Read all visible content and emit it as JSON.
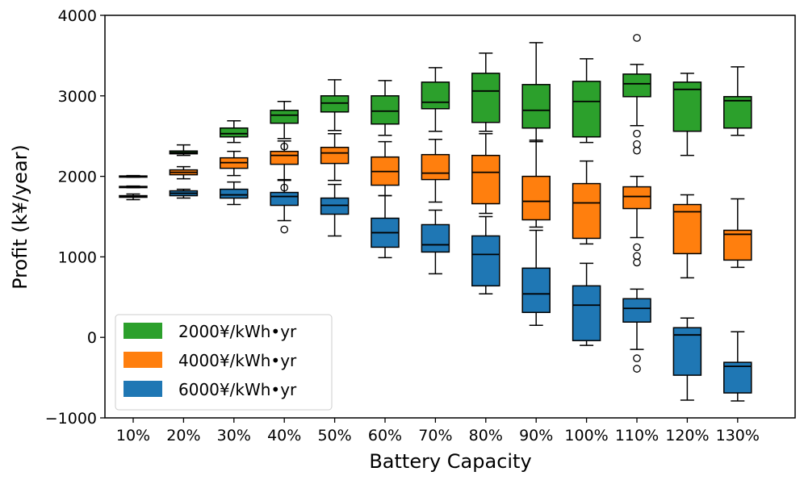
{
  "chart_data": {
    "type": "boxplot",
    "title": "",
    "xlabel": "Battery Capacity",
    "ylabel": "Profit (k¥/year)",
    "ylim": [
      -1000,
      4000
    ],
    "yticks": [
      -1000,
      0,
      1000,
      2000,
      3000,
      4000
    ],
    "ytick_labels": [
      "−1000",
      "0",
      "1000",
      "2000",
      "3000",
      "4000"
    ],
    "categories": [
      "10%",
      "20%",
      "30%",
      "40%",
      "50%",
      "60%",
      "70%",
      "80%",
      "90%",
      "100%",
      "110%",
      "120%",
      "130%"
    ],
    "legend_position": "lower-left",
    "grid": false,
    "series": [
      {
        "name": "2000¥/kWh•yr",
        "color": "#2ca02c",
        "boxes": [
          {
            "whislo": 1990,
            "q1": 1995,
            "med": 2000,
            "q3": 2005,
            "whishi": 2010,
            "fliers": []
          },
          {
            "whislo": 2260,
            "q1": 2280,
            "med": 2295,
            "q3": 2315,
            "whishi": 2390,
            "fliers": []
          },
          {
            "whislo": 2420,
            "q1": 2490,
            "med": 2530,
            "q3": 2600,
            "whishi": 2690,
            "fliers": []
          },
          {
            "whislo": 2470,
            "q1": 2660,
            "med": 2760,
            "q3": 2820,
            "whishi": 2930,
            "fliers": []
          },
          {
            "whislo": 2570,
            "q1": 2800,
            "med": 2910,
            "q3": 3000,
            "whishi": 3200,
            "fliers": []
          },
          {
            "whislo": 2510,
            "q1": 2650,
            "med": 2810,
            "q3": 3000,
            "whishi": 3190,
            "fliers": []
          },
          {
            "whislo": 2560,
            "q1": 2840,
            "med": 2920,
            "q3": 3170,
            "whishi": 3350,
            "fliers": []
          },
          {
            "whislo": 2560,
            "q1": 2670,
            "med": 3060,
            "q3": 3280,
            "whishi": 3530,
            "fliers": []
          },
          {
            "whislo": 2430,
            "q1": 2600,
            "med": 2820,
            "q3": 3140,
            "whishi": 3660,
            "fliers": []
          },
          {
            "whislo": 2420,
            "q1": 2490,
            "med": 2930,
            "q3": 3180,
            "whishi": 3460,
            "fliers": []
          },
          {
            "whislo": 2630,
            "q1": 2990,
            "med": 3150,
            "q3": 3270,
            "whishi": 3390,
            "fliers": [
              3720,
              2530,
              2400,
              2320
            ]
          },
          {
            "whislo": 2260,
            "q1": 2560,
            "med": 3080,
            "q3": 3170,
            "whishi": 3280,
            "fliers": []
          },
          {
            "whislo": 2510,
            "q1": 2600,
            "med": 2940,
            "q3": 2990,
            "whishi": 3360,
            "fliers": []
          }
        ]
      },
      {
        "name": "4000¥/kWh•yr",
        "color": "#ff7f0e",
        "boxes": [
          {
            "whislo": 1860,
            "q1": 1865,
            "med": 1870,
            "q3": 1875,
            "whishi": 1880,
            "fliers": []
          },
          {
            "whislo": 1970,
            "q1": 2020,
            "med": 2050,
            "q3": 2080,
            "whishi": 2120,
            "fliers": []
          },
          {
            "whislo": 2010,
            "q1": 2100,
            "med": 2170,
            "q3": 2230,
            "whishi": 2310,
            "fliers": []
          },
          {
            "whislo": 1960,
            "q1": 2150,
            "med": 2260,
            "q3": 2310,
            "whishi": 2440,
            "fliers": [
              2370,
              1860
            ]
          },
          {
            "whislo": 1950,
            "q1": 2160,
            "med": 2290,
            "q3": 2360,
            "whishi": 2530,
            "fliers": []
          },
          {
            "whislo": 1760,
            "q1": 1890,
            "med": 2060,
            "q3": 2240,
            "whishi": 2430,
            "fliers": []
          },
          {
            "whislo": 1680,
            "q1": 1960,
            "med": 2040,
            "q3": 2270,
            "whishi": 2460,
            "fliers": []
          },
          {
            "whislo": 1540,
            "q1": 1660,
            "med": 2050,
            "q3": 2260,
            "whishi": 2530,
            "fliers": []
          },
          {
            "whislo": 1370,
            "q1": 1460,
            "med": 1690,
            "q3": 2000,
            "whishi": 2450,
            "fliers": []
          },
          {
            "whislo": 1160,
            "q1": 1230,
            "med": 1670,
            "q3": 1910,
            "whishi": 2190,
            "fliers": []
          },
          {
            "whislo": 1240,
            "q1": 1600,
            "med": 1750,
            "q3": 1870,
            "whishi": 2000,
            "fliers": [
              1120,
              1010,
              930
            ]
          },
          {
            "whislo": 740,
            "q1": 1040,
            "med": 1560,
            "q3": 1650,
            "whishi": 1770,
            "fliers": []
          },
          {
            "whislo": 870,
            "q1": 960,
            "med": 1280,
            "q3": 1330,
            "whishi": 1720,
            "fliers": []
          }
        ]
      },
      {
        "name": "6000¥/kWh•yr",
        "color": "#1f77b4",
        "boxes": [
          {
            "whislo": 1710,
            "q1": 1740,
            "med": 1750,
            "q3": 1760,
            "whishi": 1780,
            "fliers": []
          },
          {
            "whislo": 1730,
            "q1": 1760,
            "med": 1790,
            "q3": 1820,
            "whishi": 1840,
            "fliers": []
          },
          {
            "whislo": 1650,
            "q1": 1730,
            "med": 1770,
            "q3": 1840,
            "whishi": 1930,
            "fliers": []
          },
          {
            "whislo": 1450,
            "q1": 1640,
            "med": 1750,
            "q3": 1800,
            "whishi": 1950,
            "fliers": [
              1340
            ]
          },
          {
            "whislo": 1260,
            "q1": 1530,
            "med": 1640,
            "q3": 1730,
            "whishi": 1900,
            "fliers": []
          },
          {
            "whislo": 990,
            "q1": 1120,
            "med": 1300,
            "q3": 1480,
            "whishi": 1760,
            "fliers": []
          },
          {
            "whislo": 790,
            "q1": 1060,
            "med": 1150,
            "q3": 1400,
            "whishi": 1580,
            "fliers": []
          },
          {
            "whislo": 540,
            "q1": 640,
            "med": 1030,
            "q3": 1260,
            "whishi": 1500,
            "fliers": []
          },
          {
            "whislo": 150,
            "q1": 310,
            "med": 540,
            "q3": 860,
            "whishi": 1330,
            "fliers": []
          },
          {
            "whislo": -100,
            "q1": -40,
            "med": 400,
            "q3": 640,
            "whishi": 920,
            "fliers": []
          },
          {
            "whislo": -150,
            "q1": 190,
            "med": 360,
            "q3": 480,
            "whishi": 600,
            "fliers": [
              -260,
              -390
            ]
          },
          {
            "whislo": -780,
            "q1": -470,
            "med": 30,
            "q3": 120,
            "whishi": 240,
            "fliers": []
          },
          {
            "whislo": -790,
            "q1": -690,
            "med": -360,
            "q3": -310,
            "whishi": 70,
            "fliers": []
          }
        ]
      }
    ]
  }
}
